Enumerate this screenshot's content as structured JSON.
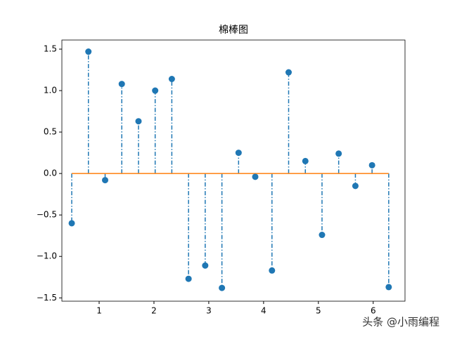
{
  "chart_data": {
    "type": "stem",
    "title": "棉棒图",
    "x": [
      0.5,
      0.804,
      1.109,
      1.413,
      1.718,
      2.022,
      2.326,
      2.631,
      2.935,
      3.24,
      3.544,
      3.848,
      4.153,
      4.457,
      4.762,
      5.066,
      5.37,
      5.675,
      5.979,
      6.283
    ],
    "values": [
      -0.6,
      1.47,
      -0.08,
      1.08,
      0.63,
      1.0,
      1.14,
      -1.27,
      -1.11,
      -1.38,
      0.25,
      -0.04,
      -1.17,
      1.22,
      0.15,
      -0.74,
      0.24,
      -0.15,
      0.1,
      -1.37
    ],
    "color": "#1f77b4",
    "baseline_color": "#ff7f0e",
    "xlim": [
      0.32,
      6.58
    ],
    "xticks": [
      1,
      2,
      3,
      4,
      5,
      6
    ],
    "ylim": [
      -1.54,
      1.61
    ],
    "yticks": [
      {
        "value": -1.5,
        "label": "−1.5"
      },
      {
        "value": -1,
        "label": "−1.0"
      },
      {
        "value": -0.5,
        "label": "−0.5"
      },
      {
        "value": 0,
        "label": "0.0"
      },
      0.5,
      {
        "value": 1,
        "label": "1.0"
      },
      1.5
    ],
    "watermark": "头条 @小雨编程"
  }
}
